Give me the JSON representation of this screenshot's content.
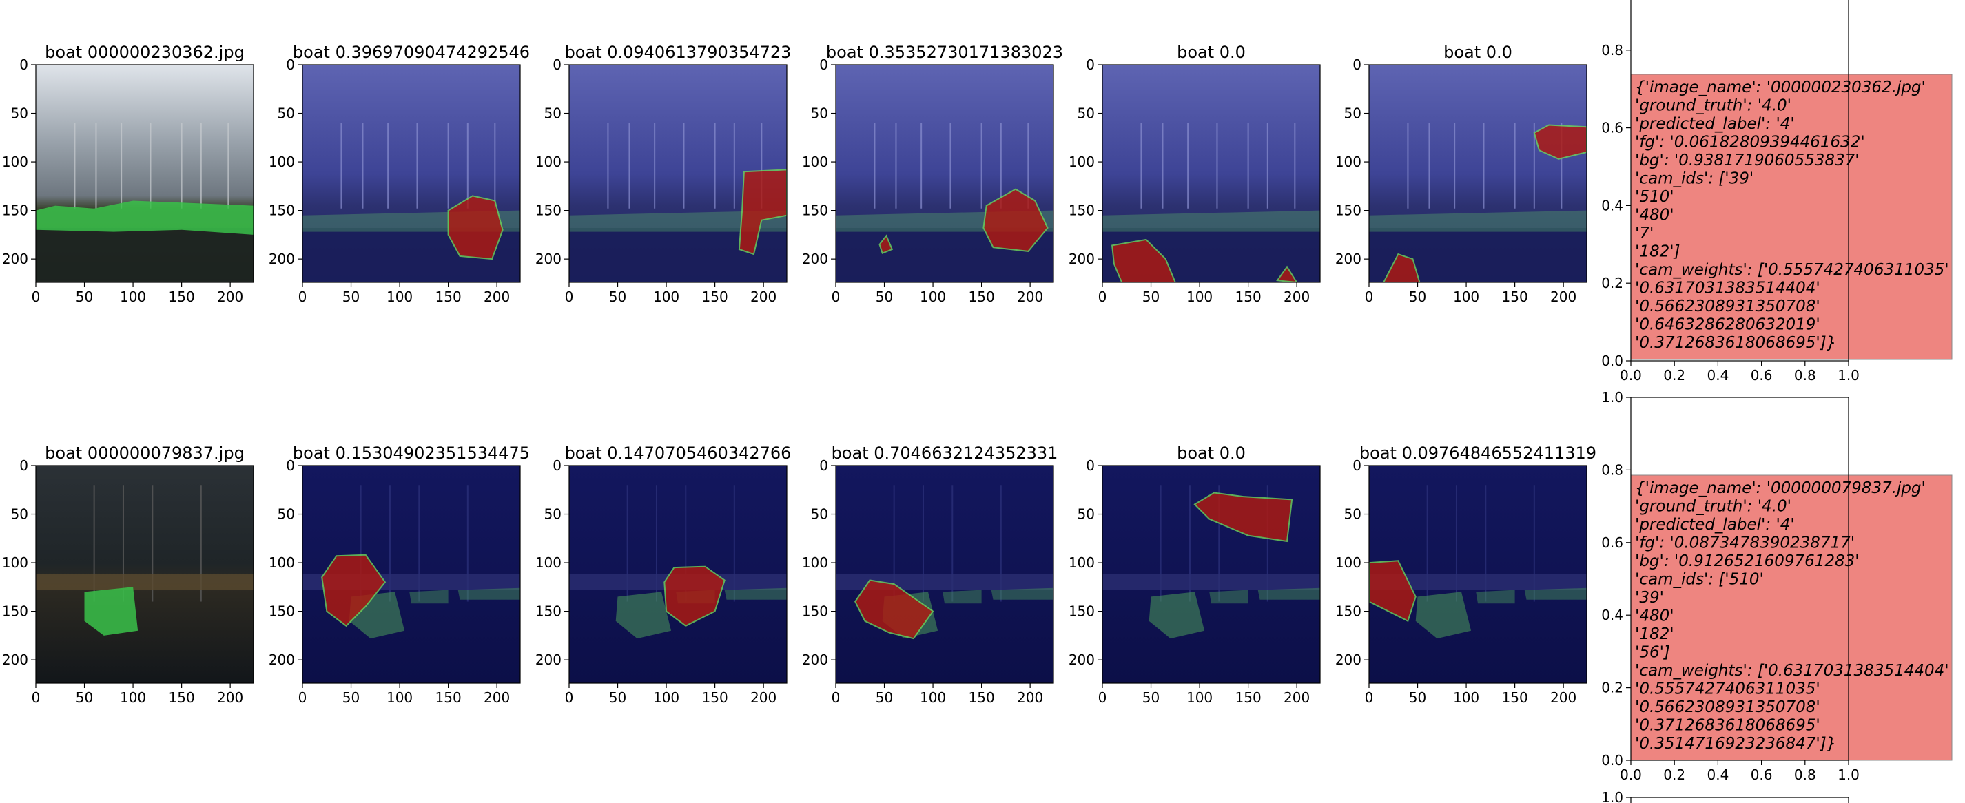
{
  "chart_data": {
    "type": "grid",
    "tile_axes": {
      "xticks": [
        0,
        50,
        100,
        150,
        200
      ],
      "yticks": [
        0,
        50,
        100,
        150,
        200
      ],
      "xlim": [
        0,
        224
      ],
      "ylim": [
        224,
        0
      ]
    },
    "text_axes": {
      "xticks": [
        "0.0",
        "0.2",
        "0.4",
        "0.6",
        "0.8",
        "1.0"
      ],
      "yticks": [
        "0.0",
        "0.2",
        "0.4",
        "0.6",
        "0.8",
        "1.0"
      ],
      "xlim": [
        0,
        1
      ],
      "ylim": [
        0,
        1
      ]
    },
    "colors": {
      "overlay_blue": "#1c1f6e",
      "mask_red": "#b01a10",
      "mask_green": "#3ac24a",
      "info_box": "#ee8580"
    },
    "rows": [
      {
        "scene": "harbor-cloudy",
        "tiles": [
          {
            "title": "boat 000000230362.jpg",
            "kind": "original",
            "red_regions": [],
            "green": [
              [
                0,
                150
              ],
              [
                20,
                145
              ],
              [
                60,
                148
              ],
              [
                100,
                140
              ],
              [
                150,
                142
              ],
              [
                224,
                145
              ],
              [
                224,
                175
              ],
              [
                150,
                170
              ],
              [
                80,
                172
              ],
              [
                0,
                170
              ]
            ]
          },
          {
            "title": "boat 0.39697090474292546",
            "kind": "cam",
            "red_regions": [
              [
                [
                  150,
                  150
                ],
                [
                  175,
                  135
                ],
                [
                  198,
                  140
                ],
                [
                  206,
                  170
                ],
                [
                  195,
                  200
                ],
                [
                  162,
                  197
                ],
                [
                  150,
                  175
                ]
              ]
            ]
          },
          {
            "title": "boat 0.0940613790354723",
            "kind": "cam",
            "red_regions": [
              [
                [
                  180,
                  110
                ],
                [
                  224,
                  108
                ],
                [
                  224,
                  155
                ],
                [
                  198,
                  160
                ],
                [
                  190,
                  195
                ],
                [
                  175,
                  190
                ],
                [
                  178,
                  150
                ]
              ]
            ]
          },
          {
            "title": "boat 0.35352730171383023",
            "kind": "cam",
            "red_regions": [
              [
                [
                  155,
                  145
                ],
                [
                  185,
                  128
                ],
                [
                  205,
                  140
                ],
                [
                  218,
                  168
                ],
                [
                  198,
                  192
                ],
                [
                  162,
                  188
                ],
                [
                  152,
                  168
                ]
              ]
            ],
            "extra_red": [
              [
                [
                  45,
                  185
                ],
                [
                  52,
                  176
                ],
                [
                  58,
                  190
                ],
                [
                  48,
                  194
                ]
              ]
            ]
          },
          {
            "title": "boat 0.0",
            "kind": "cam",
            "red_regions": [
              [
                [
                  10,
                  186
                ],
                [
                  45,
                  180
                ],
                [
                  65,
                  200
                ],
                [
                  75,
                  224
                ],
                [
                  20,
                  224
                ],
                [
                  12,
                  205
                ]
              ]
            ],
            "extra_red": [
              [
                [
                  180,
                  222
                ],
                [
                  190,
                  208
                ],
                [
                  200,
                  224
                ]
              ]
            ]
          },
          {
            "title": "boat 0.0",
            "kind": "cam",
            "red_regions": [
              [
                [
                  170,
                  70
                ],
                [
                  185,
                  62
                ],
                [
                  224,
                  64
                ],
                [
                  224,
                  90
                ],
                [
                  195,
                  97
                ],
                [
                  175,
                  88
                ]
              ]
            ],
            "extra_red": [
              [
                [
                  15,
                  224
                ],
                [
                  30,
                  195
                ],
                [
                  45,
                  200
                ],
                [
                  52,
                  224
                ]
              ]
            ]
          }
        ],
        "info": [
          "{'image_name': '000000230362.jpg'",
          "'ground_truth': '4.0'",
          "'predicted_label': '4'",
          "'fg': '0.06182809394461632'",
          "'bg': '0.9381719060553837'",
          "'cam_ids': ['39'",
          "'510'",
          "'480'",
          "'7'",
          "'182']",
          "'cam_weights': ['0.5557427406311035'",
          "'0.6317031383514404'",
          "'0.5662308931350708'",
          "'0.6463286280632019'",
          "'0.3712683618068695']}"
        ]
      },
      {
        "scene": "harbor-night",
        "tiles": [
          {
            "title": "boat 000000079837.jpg",
            "kind": "original",
            "red_regions": [],
            "green": [
              [
                50,
                130
              ],
              [
                100,
                125
              ],
              [
                105,
                170
              ],
              [
                70,
                175
              ],
              [
                50,
                160
              ]
            ]
          },
          {
            "title": "boat 0.15304902351534475",
            "kind": "cam",
            "red_regions": [
              [
                [
                  20,
                  115
                ],
                [
                  35,
                  93
                ],
                [
                  65,
                  92
                ],
                [
                  85,
                  120
                ],
                [
                  65,
                  145
                ],
                [
                  45,
                  165
                ],
                [
                  25,
                  150
                ]
              ]
            ]
          },
          {
            "title": "boat 0.1470705460342766",
            "kind": "cam",
            "red_regions": [
              [
                [
                  98,
                  120
                ],
                [
                  108,
                  105
                ],
                [
                  140,
                  104
                ],
                [
                  160,
                  118
                ],
                [
                  150,
                  150
                ],
                [
                  120,
                  165
                ],
                [
                  100,
                  150
                ]
              ]
            ]
          },
          {
            "title": "boat 0.7046632124352331",
            "kind": "cam",
            "red_regions": [
              [
                [
                  20,
                  140
                ],
                [
                  35,
                  118
                ],
                [
                  60,
                  122
                ],
                [
                  100,
                  150
                ],
                [
                  80,
                  178
                ],
                [
                  55,
                  172
                ],
                [
                  30,
                  160
                ]
              ]
            ]
          },
          {
            "title": "boat 0.0",
            "kind": "cam",
            "red_regions": [
              [
                [
                  95,
                  40
                ],
                [
                  115,
                  28
                ],
                [
                  145,
                  32
                ],
                [
                  195,
                  35
                ],
                [
                  190,
                  78
                ],
                [
                  150,
                  72
                ],
                [
                  110,
                  55
                ]
              ]
            ]
          },
          {
            "title": "boat 0.09764846552411319",
            "kind": "cam",
            "red_regions": [
              [
                [
                  0,
                  100
                ],
                [
                  30,
                  98
                ],
                [
                  48,
                  135
                ],
                [
                  40,
                  160
                ],
                [
                  20,
                  150
                ],
                [
                  0,
                  140
                ]
              ]
            ]
          }
        ],
        "info": [
          "{'image_name': '000000079837.jpg'",
          "'ground_truth': '4.0'",
          "'predicted_label': '4'",
          "'fg': '0.0873478390238717'",
          "'bg': '0.9126521609761283'",
          "'cam_ids': ['510'",
          "'39'",
          "'480'",
          "'182'",
          "'56']",
          "'cam_weights': ['0.6317031383514404'",
          "'0.5557427406311035'",
          "'0.5662308931350708'",
          "'0.3712683618068695'",
          "'0.3514716923236847']}"
        ]
      }
    ],
    "partial_row": {
      "ytick_label": "1.0"
    }
  }
}
